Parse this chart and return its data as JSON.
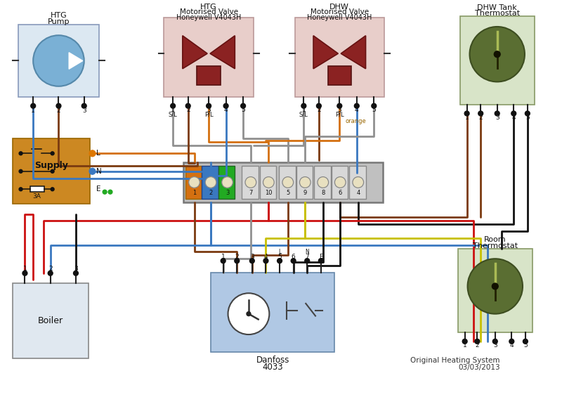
{
  "bg": "#ffffff",
  "pump": [
    18,
    30,
    118,
    105
  ],
  "htg_valve": [
    230,
    20,
    130,
    115
  ],
  "dhw_valve": [
    420,
    20,
    130,
    115
  ],
  "dhw_therm": [
    660,
    18,
    108,
    128
  ],
  "supply": [
    10,
    195,
    112,
    95
  ],
  "wiring": [
    258,
    230,
    290,
    58
  ],
  "danfoss": [
    298,
    390,
    180,
    115
  ],
  "boiler": [
    10,
    405,
    110,
    110
  ],
  "room_therm": [
    657,
    355,
    108,
    122
  ],
  "colors": {
    "pump_bg": "#dce8f2",
    "pump_circle": "#7ab0d5",
    "valve_bg": "#e8ceca",
    "valve_body": "#8B2222",
    "therm_bg": "#d8e4c8",
    "therm_circle": "#5a6e32",
    "supply_bg": "#cc8822",
    "wiring_bg": "#b8b8b8",
    "wiring_ec": "#888888",
    "danfoss_bg": "#b0c8e4",
    "boiler_bg": "#e0e8f0",
    "bl": "#3a78c0",
    "br": "#7B3A10",
    "rd": "#cc1111",
    "bk": "#111111",
    "or": "#d47010",
    "yw": "#c8c000",
    "gy": "#909090",
    "gn": "#22aa22"
  }
}
